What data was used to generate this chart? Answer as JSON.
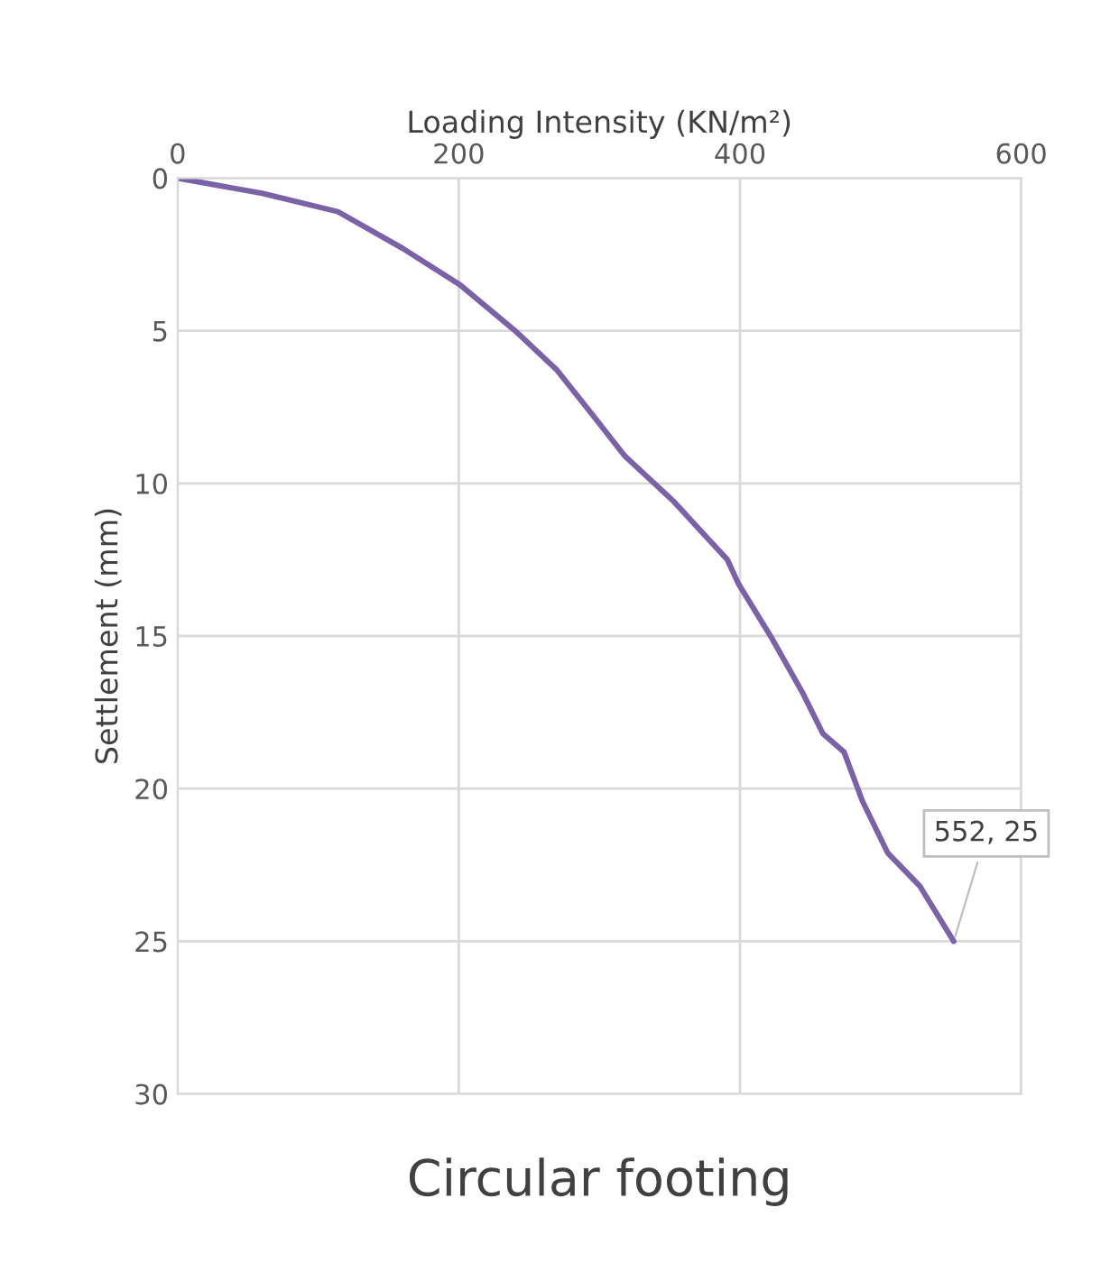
{
  "chart_data": {
    "type": "line",
    "title": "Circular footing",
    "xlabel": "Loading Intensity (KN/m²)",
    "ylabel": "Settlement (mm)",
    "x": [
      0,
      60,
      114,
      160,
      201,
      240,
      270,
      295,
      318,
      353,
      391,
      399,
      423,
      445,
      459,
      474,
      487,
      505,
      528,
      552
    ],
    "values": [
      0,
      0.5,
      1.1,
      2.3,
      3.5,
      5.0,
      6.3,
      7.75,
      9.1,
      10.6,
      12.5,
      13.3,
      15.1,
      16.9,
      18.2,
      18.8,
      20.4,
      22.1,
      23.2,
      25
    ],
    "color": "#7b62a8",
    "xlim": [
      0,
      600
    ],
    "xticks": [
      0,
      200,
      400,
      600
    ],
    "ylim": [
      30,
      0
    ],
    "yticks": [
      0,
      5,
      10,
      15,
      20,
      25,
      30
    ],
    "grid": true,
    "marker": "none",
    "line_style": "solid",
    "annotations": [
      {
        "text": "552, 25",
        "x": 552,
        "y": 25
      }
    ]
  }
}
